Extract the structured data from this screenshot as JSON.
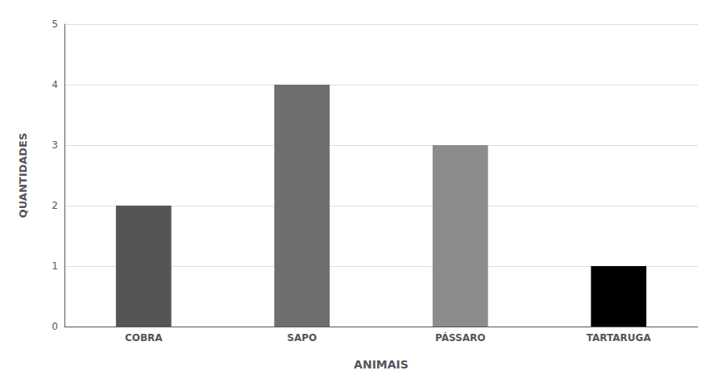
{
  "chart_data": {
    "type": "bar",
    "xlabel": "ANIMAIS",
    "ylabel": "QUANTIDADES",
    "categories": [
      "COBRA",
      "SAPO",
      "PÁSSARO",
      "TARTARUGA"
    ],
    "values": [
      2,
      4,
      3,
      1
    ],
    "colors": [
      "#555555",
      "#6e6e6e",
      "#8c8c8c",
      "#000000"
    ],
    "ylim": [
      0,
      5
    ],
    "yticks": [
      0,
      1,
      2,
      3,
      4,
      5
    ],
    "grid": true
  }
}
